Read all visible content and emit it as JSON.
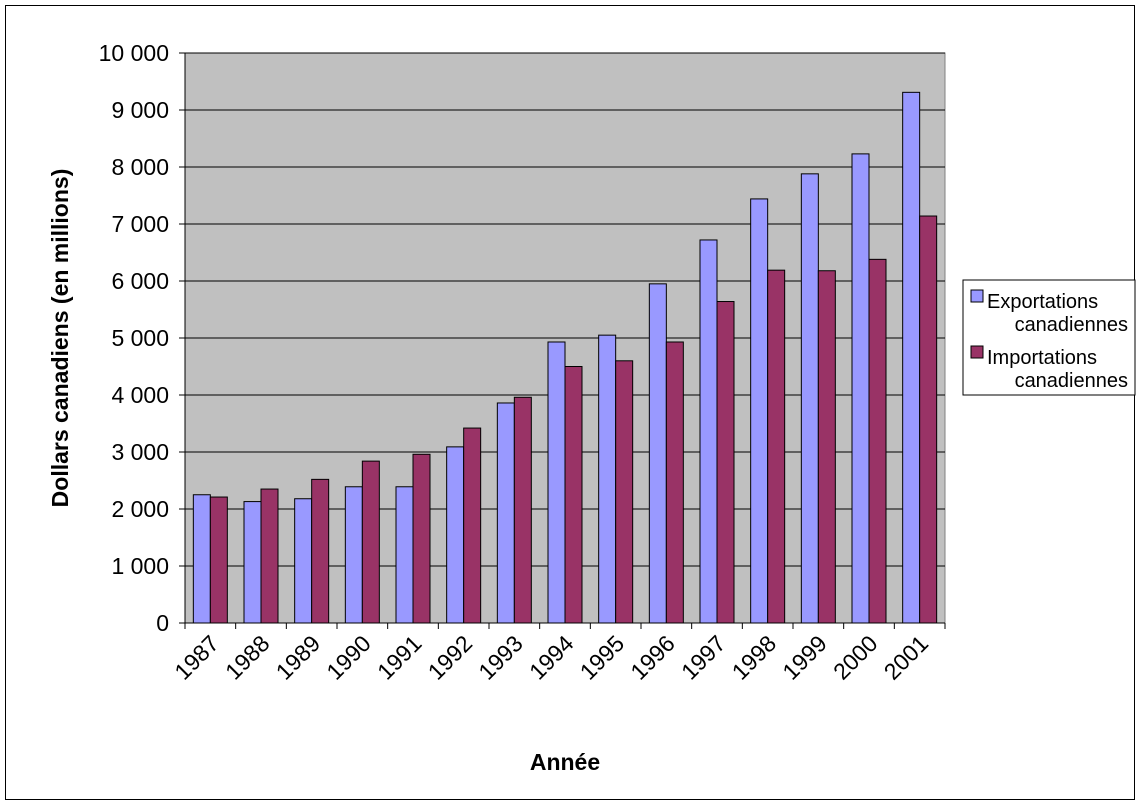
{
  "chart_data": {
    "type": "bar",
    "title": "",
    "xlabel": "Année",
    "ylabel": "Dollars canadiens (en millions)",
    "ylim": [
      0,
      10000
    ],
    "y_ticks": [
      "0",
      "1 000",
      "2 000",
      "3 000",
      "4 000",
      "5 000",
      "6 000",
      "7 000",
      "8 000",
      "9 000",
      "10 000"
    ],
    "grid": true,
    "legend_position": "right",
    "categories": [
      "1987",
      "1988",
      "1989",
      "1990",
      "1991",
      "1992",
      "1993",
      "1994",
      "1995",
      "1996",
      "1997",
      "1998",
      "1999",
      "2000",
      "2001"
    ],
    "series": [
      {
        "name": "Exportations canadiennes",
        "legend_lines": [
          "Exportations",
          "canadiennes"
        ],
        "color": "#9999ff",
        "values": [
          2250,
          2130,
          2180,
          2390,
          2390,
          3090,
          3860,
          4930,
          5050,
          5950,
          6720,
          7440,
          7880,
          8230,
          9310
        ]
      },
      {
        "name": "Importations canadiennes",
        "legend_lines": [
          "Importations",
          "canadiennes"
        ],
        "color": "#993366",
        "values": [
          2210,
          2350,
          2520,
          2840,
          2960,
          3420,
          3960,
          4500,
          4600,
          4930,
          5640,
          6190,
          6180,
          6380,
          7140
        ]
      }
    ],
    "plot_background": "#c0c0c0"
  }
}
